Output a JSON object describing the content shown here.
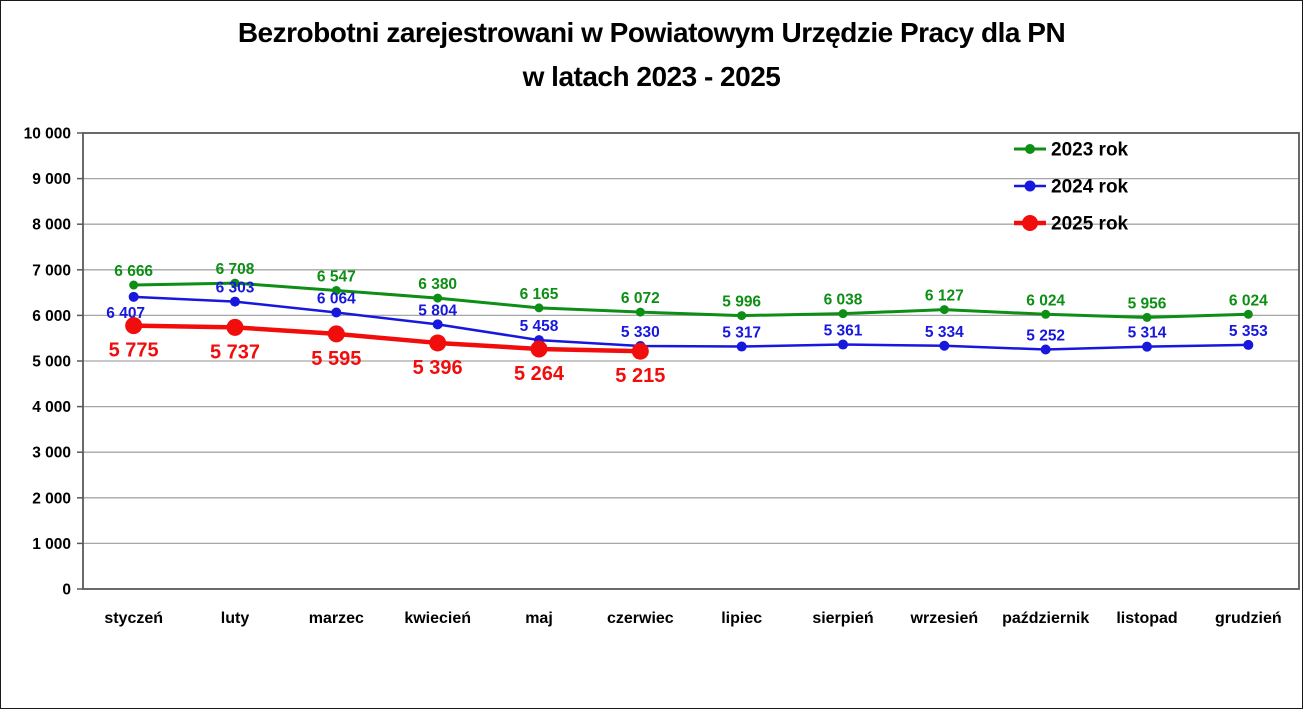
{
  "title": {
    "line1": "Bezrobotni zarejestrowani w Powiatowym Urzędzie Pracy dla PN",
    "line2": "w latach 2023 - 2025"
  },
  "chart_data": {
    "type": "line",
    "title": "Bezrobotni zarejestrowani w Powiatowym Urzędzie Pracy dla PN w latach 2023 - 2025",
    "categories": [
      "styczeń",
      "luty",
      "marzec",
      "kwiecień",
      "maj",
      "czerwiec",
      "lipiec",
      "sierpień",
      "wrzesień",
      "październik",
      "listopad",
      "grudzień"
    ],
    "series": [
      {
        "name": "2023 rok",
        "color": "#0d8e14",
        "values": [
          6666,
          6708,
          6547,
          6380,
          6165,
          6072,
          5996,
          6038,
          6127,
          6024,
          5956,
          6024
        ]
      },
      {
        "name": "2024 rok",
        "color": "#1717dd",
        "values": [
          6407,
          6303,
          6064,
          5804,
          5458,
          5330,
          5317,
          5361,
          5334,
          5252,
          5314,
          5353
        ]
      },
      {
        "name": "2025 rok",
        "color": "#f20d0d",
        "values": [
          5775,
          5737,
          5595,
          5396,
          5264,
          5215,
          null,
          null,
          null,
          null,
          null,
          null
        ]
      }
    ],
    "ylim": [
      0,
      10000
    ],
    "ytick_step": 1000,
    "ytick_labels": [
      "0",
      "1 000",
      "2 000",
      "3 000",
      "4 000",
      "5 000",
      "6 000",
      "7 000",
      "8 000",
      "9 000",
      "10 000"
    ],
    "xlabel": "",
    "ylabel": "",
    "grid": true,
    "legend_position": "top-right",
    "data_labels": true,
    "grid_color": "#a6a6a6",
    "border_color": "#595959",
    "text_color": "#000000"
  }
}
